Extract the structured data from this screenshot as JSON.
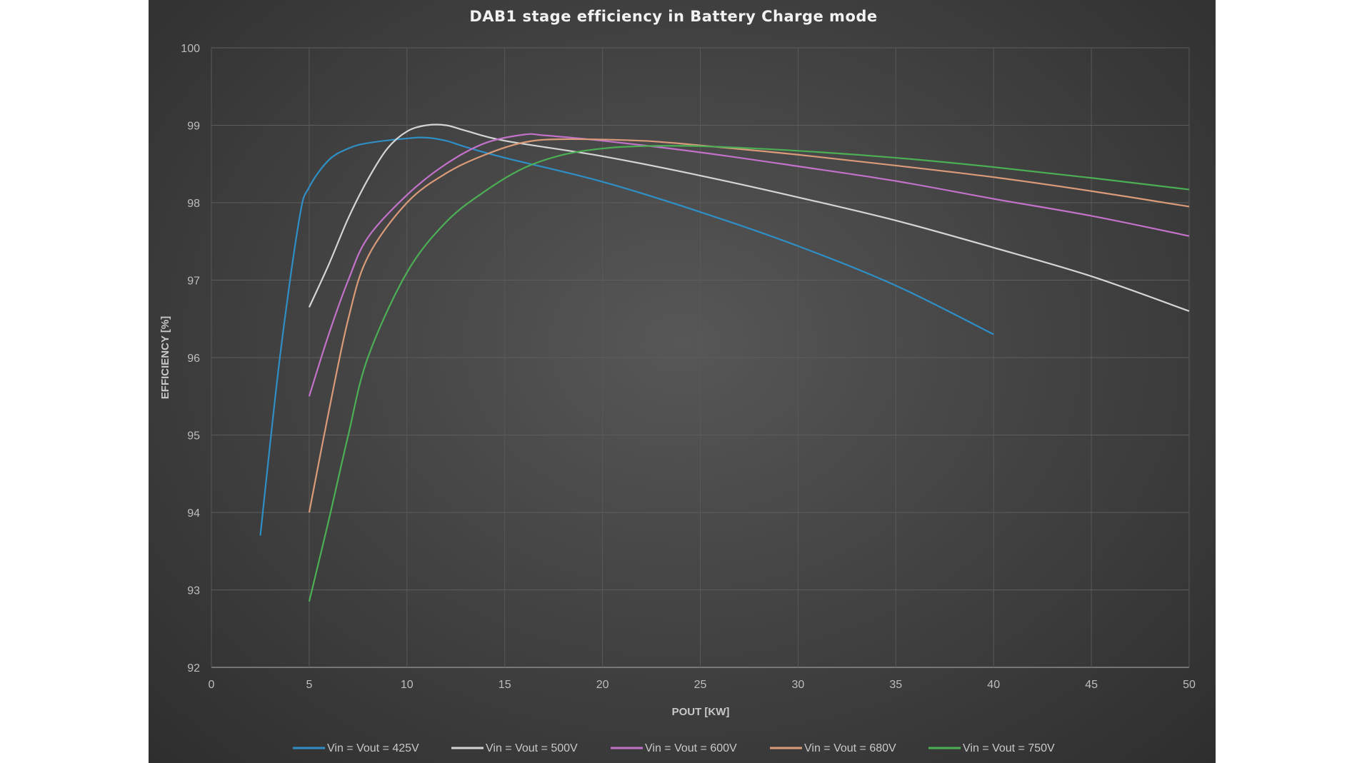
{
  "chart_data": {
    "type": "line",
    "title": "DAB1 stage efficiency in Battery Charge mode",
    "xlabel": "POUT [KW]",
    "ylabel": "EFFICIENCY [%]",
    "xlim": [
      0,
      50
    ],
    "ylim": [
      92,
      100
    ],
    "xticks": [
      0,
      5,
      10,
      15,
      20,
      25,
      30,
      35,
      40,
      45,
      50
    ],
    "yticks": [
      92,
      93,
      94,
      95,
      96,
      97,
      98,
      99,
      100
    ],
    "grid": true,
    "legend_position": "bottom",
    "series": [
      {
        "name": "Vin = Vout = 425V",
        "color": "#2f8fc4",
        "x": [
          2.5,
          3.5,
          4.5,
          5,
          6,
          7,
          8,
          10,
          11,
          12,
          13,
          15,
          20,
          25,
          30,
          35,
          40
        ],
        "y": [
          93.7,
          96.0,
          97.8,
          98.2,
          98.55,
          98.7,
          98.77,
          98.83,
          98.84,
          98.8,
          98.72,
          98.58,
          98.27,
          97.88,
          97.44,
          96.93,
          96.3
        ]
      },
      {
        "name": "Vin = Vout = 500V",
        "color": "#d4d4d4",
        "x": [
          5,
          6,
          7,
          8,
          9,
          10,
          11,
          12,
          13,
          15,
          20,
          25,
          30,
          35,
          40,
          45,
          50
        ],
        "y": [
          96.65,
          97.2,
          97.8,
          98.3,
          98.7,
          98.92,
          99.0,
          99.0,
          98.93,
          98.8,
          98.6,
          98.35,
          98.07,
          97.77,
          97.42,
          97.05,
          96.6
        ]
      },
      {
        "name": "Vin = Vout = 600V",
        "color": "#c272c9",
        "x": [
          5,
          6,
          7,
          8,
          10,
          12,
          14,
          16,
          17,
          20,
          25,
          30,
          35,
          40,
          45,
          50
        ],
        "y": [
          95.5,
          96.3,
          97.0,
          97.55,
          98.1,
          98.5,
          98.77,
          98.88,
          98.87,
          98.8,
          98.65,
          98.47,
          98.28,
          98.05,
          97.83,
          97.57
        ]
      },
      {
        "name": "Vin = Vout = 680V",
        "color": "#d99b7a",
        "x": [
          5,
          6,
          7,
          8,
          10,
          12,
          14,
          16,
          18,
          22,
          25,
          30,
          35,
          40,
          45,
          50
        ],
        "y": [
          94.0,
          95.3,
          96.5,
          97.3,
          98.0,
          98.38,
          98.62,
          98.78,
          98.82,
          98.8,
          98.74,
          98.62,
          98.48,
          98.33,
          98.15,
          97.95
        ]
      },
      {
        "name": "Vin = Vout = 750V",
        "color": "#4cae55",
        "x": [
          5,
          6,
          7,
          8,
          10,
          12,
          14,
          16,
          18,
          20,
          22,
          25,
          30,
          35,
          40,
          45,
          50
        ],
        "y": [
          92.85,
          93.9,
          95.0,
          96.0,
          97.1,
          97.75,
          98.15,
          98.45,
          98.62,
          98.7,
          98.73,
          98.73,
          98.67,
          98.58,
          98.46,
          98.32,
          98.17
        ]
      }
    ]
  }
}
